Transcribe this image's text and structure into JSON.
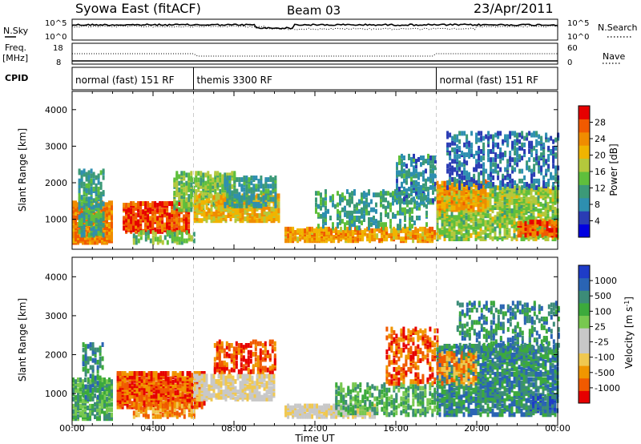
{
  "header": {
    "title": "Syowa East (fitACF)",
    "beam": "Beam 03",
    "date": "23/Apr/2011"
  },
  "noise_panel": {
    "left_label": "N.Sky",
    "left_ticks": [
      "10^5",
      "10^0"
    ],
    "right_label": "N.Search",
    "right_ticks": [
      "10^5",
      "10^0"
    ]
  },
  "freq_panel": {
    "left_label_1": "Freq.",
    "left_label_2": "[MHz]",
    "left_ticks": [
      "18",
      "8"
    ],
    "right_label": "Nave",
    "right_ticks": [
      "60",
      "0"
    ]
  },
  "cpid_panel": {
    "label": "CPID",
    "segments": [
      {
        "start_h": 0,
        "end_h": 6,
        "label": "normal (fast) 151 RF"
      },
      {
        "start_h": 6,
        "end_h": 18,
        "label": "themis 3300 RF"
      },
      {
        "start_h": 18,
        "end_h": 24,
        "label": "normal (fast) 151 RF"
      }
    ]
  },
  "colors": {
    "power_scale": [
      "#0000e0",
      "#2a3cb4",
      "#2e8fb0",
      "#3c9a78",
      "#5fbf3c",
      "#b4c83c",
      "#f0b400",
      "#f08c00",
      "#f05a00",
      "#e60000"
    ],
    "velocity_scale": [
      "#e60000",
      "#f05a00",
      "#f09600",
      "#f0c850",
      "#c8c8c8",
      "#c8c8c8",
      "#78c850",
      "#3caa3c",
      "#3c8c78",
      "#2a64b4",
      "#1e3cc8"
    ]
  },
  "chart_data": [
    {
      "type": "heatmap",
      "name": "power",
      "ylabel": "Slant Range [km]",
      "yticks": [
        "1000",
        "2000",
        "3000",
        "4000"
      ],
      "ylim": [
        180,
        4500
      ],
      "colorbar": {
        "label": "Power [dB]",
        "ticks": [
          "4",
          "8",
          "12",
          "16",
          "20",
          "24",
          "28"
        ],
        "range": [
          0,
          30
        ]
      },
      "regions": [
        {
          "t0": 0.0,
          "t1": 2.0,
          "r0": 300,
          "r1": 1400,
          "v": 24,
          "d": 0.7
        },
        {
          "t0": 0.3,
          "t1": 1.5,
          "r0": 500,
          "r1": 2300,
          "v": 10,
          "d": 0.45
        },
        {
          "t0": 2.5,
          "t1": 5.8,
          "r0": 600,
          "r1": 1400,
          "v": 27,
          "d": 0.65
        },
        {
          "t0": 3.0,
          "t1": 6.0,
          "r0": 300,
          "r1": 600,
          "v": 14,
          "d": 0.4
        },
        {
          "t0": 5.0,
          "t1": 8.0,
          "r0": 1200,
          "r1": 2200,
          "v": 14,
          "d": 0.5
        },
        {
          "t0": 6.0,
          "t1": 10.2,
          "r0": 900,
          "r1": 1600,
          "v": 20,
          "d": 0.6
        },
        {
          "t0": 7.5,
          "t1": 10.0,
          "r0": 1300,
          "r1": 2100,
          "v": 9,
          "d": 0.45
        },
        {
          "t0": 10.5,
          "t1": 18.0,
          "r0": 350,
          "r1": 700,
          "v": 22,
          "d": 0.6
        },
        {
          "t0": 12.0,
          "t1": 17.5,
          "r0": 700,
          "r1": 1700,
          "v": 10,
          "d": 0.25
        },
        {
          "t0": 16.0,
          "t1": 18.0,
          "r0": 1400,
          "r1": 2700,
          "v": 8,
          "d": 0.35
        },
        {
          "t0": 18.0,
          "t1": 24.0,
          "r0": 400,
          "r1": 1800,
          "v": 15,
          "d": 0.55
        },
        {
          "t0": 18.0,
          "t1": 20.5,
          "r0": 1200,
          "r1": 2000,
          "v": 22,
          "d": 0.45
        },
        {
          "t0": 18.5,
          "t1": 24.0,
          "r0": 1800,
          "r1": 3300,
          "v": 6,
          "d": 0.3
        },
        {
          "t0": 22.0,
          "t1": 24.0,
          "r0": 500,
          "r1": 900,
          "v": 26,
          "d": 0.6
        }
      ]
    },
    {
      "type": "heatmap",
      "name": "velocity",
      "ylabel": "Slant Range [km]",
      "yticks": [
        "1000",
        "2000",
        "3000",
        "4000"
      ],
      "ylim": [
        180,
        4500
      ],
      "colorbar": {
        "label": "Velocity [m s^-1]",
        "ticks": [
          "-1000",
          "-500",
          "-100",
          "-25",
          "25",
          "100",
          "500",
          "1000"
        ]
      },
      "regions": [
        {
          "t0": 0.0,
          "t1": 2.0,
          "r0": 300,
          "r1": 1300,
          "v": 7,
          "d": 0.6
        },
        {
          "t0": 0.5,
          "t1": 1.5,
          "r0": 800,
          "r1": 2200,
          "v": 8,
          "d": 0.35
        },
        {
          "t0": 2.2,
          "t1": 6.5,
          "r0": 600,
          "r1": 1500,
          "v": 1,
          "d": 0.75
        },
        {
          "t0": 3.0,
          "t1": 6.0,
          "r0": 350,
          "r1": 700,
          "v": 2,
          "d": 0.45
        },
        {
          "t0": 6.0,
          "t1": 10.0,
          "r0": 800,
          "r1": 1400,
          "v": 4,
          "d": 0.6
        },
        {
          "t0": 7.0,
          "t1": 10.0,
          "r0": 1500,
          "r1": 2300,
          "v": 1,
          "d": 0.35
        },
        {
          "t0": 10.5,
          "t1": 15.0,
          "r0": 350,
          "r1": 650,
          "v": 4,
          "d": 0.7
        },
        {
          "t0": 13.0,
          "t1": 18.0,
          "r0": 400,
          "r1": 1200,
          "v": 7,
          "d": 0.35
        },
        {
          "t0": 15.5,
          "t1": 18.0,
          "r0": 1200,
          "r1": 2600,
          "v": 1,
          "d": 0.3
        },
        {
          "t0": 18.0,
          "t1": 24.0,
          "r0": 400,
          "r1": 2200,
          "v": 8,
          "d": 0.55
        },
        {
          "t0": 18.0,
          "t1": 20.0,
          "r0": 1200,
          "r1": 2000,
          "v": 2,
          "d": 0.4
        },
        {
          "t0": 19.0,
          "t1": 24.0,
          "r0": 2000,
          "r1": 3300,
          "v": 8,
          "d": 0.25
        },
        {
          "t0": 22.5,
          "t1": 24.0,
          "r0": 500,
          "r1": 900,
          "v": 9,
          "d": 0.5
        }
      ]
    }
  ],
  "xaxis": {
    "label": "Time UT",
    "ticks": [
      "00:00",
      "04:00",
      "08:00",
      "12:00",
      "16:00",
      "20:00",
      "00:00"
    ]
  }
}
